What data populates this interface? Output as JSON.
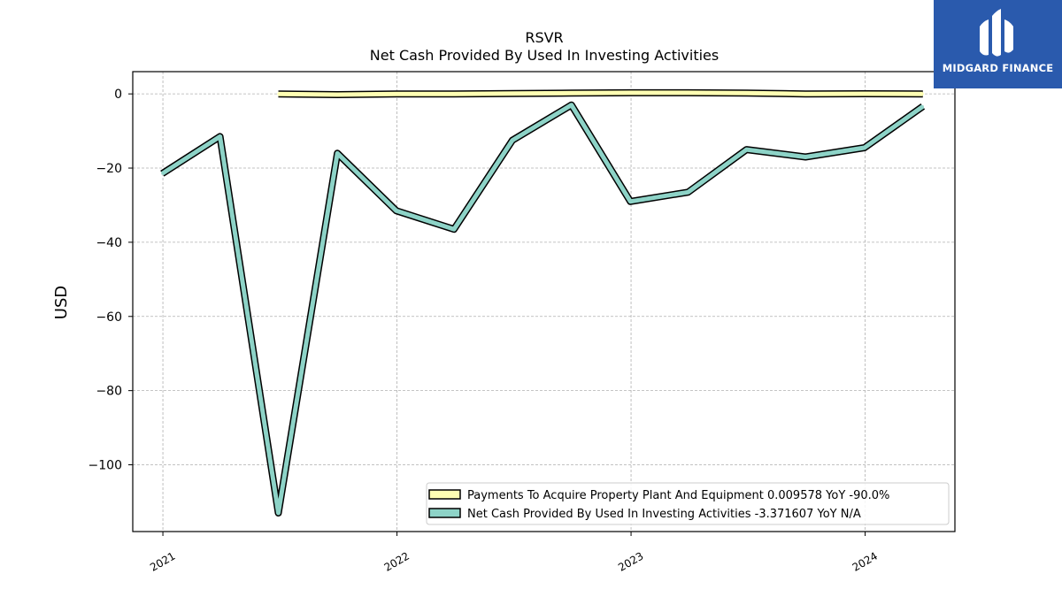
{
  "chart_data": {
    "type": "line",
    "title": "RSVR",
    "subtitle": "Net Cash Provided By Used In Investing Activities",
    "ylabel": "USD",
    "xlabel": "",
    "ylim": [
      -118,
      6
    ],
    "xlim": [
      "2020-11-15",
      "2024-05-20"
    ],
    "yticks": [
      0,
      -20,
      -40,
      -60,
      -80,
      -100
    ],
    "ytick_labels": [
      "0",
      "−20",
      "−40",
      "−60",
      "−80",
      "−100"
    ],
    "xticks": [
      "2021-01-01",
      "2022-01-01",
      "2023-01-01",
      "2024-01-01"
    ],
    "xtick_labels": [
      "2021",
      "2022",
      "2023",
      "2024"
    ],
    "grid": true,
    "legend_position": "lower-right",
    "series": [
      {
        "name": "Payments To Acquire Property Plant And Equipment",
        "legend_label": "Payments To Acquire Property Plant And Equipment  0.009578 YoY -90.0%",
        "color": "#ffffb3",
        "x": [
          "2021-06-30",
          "2021-09-30",
          "2021-12-31",
          "2022-03-31",
          "2022-06-30",
          "2022-09-30",
          "2022-12-31",
          "2023-03-31",
          "2023-06-30",
          "2023-09-30",
          "2023-12-31",
          "2024-03-31"
        ],
        "y": [
          0.0,
          -0.2,
          0.0,
          0.0,
          0.1,
          0.2,
          0.3,
          0.3,
          0.2,
          0.0,
          0.05,
          0.0
        ]
      },
      {
        "name": "Net Cash Provided By Used In Investing Activities",
        "legend_label": "Net Cash Provided By Used In Investing Activities  -3.371607 YoY N/A",
        "color": "#8dd3c7",
        "x": [
          "2020-12-31",
          "2021-03-31",
          "2021-06-30",
          "2021-09-30",
          "2021-12-31",
          "2022-03-31",
          "2022-06-30",
          "2022-09-30",
          "2022-12-31",
          "2023-03-31",
          "2023-06-30",
          "2023-09-30",
          "2023-12-31",
          "2024-03-31"
        ],
        "y": [
          -21.5,
          -11.5,
          -113,
          -16,
          -31.5,
          -36.5,
          -12.5,
          -3,
          -29,
          -26.5,
          -15,
          -17,
          -14.5,
          -3.37
        ]
      }
    ]
  },
  "logo": {
    "text": "MIDGARD FINANCE",
    "color": "#2a5aad"
  }
}
